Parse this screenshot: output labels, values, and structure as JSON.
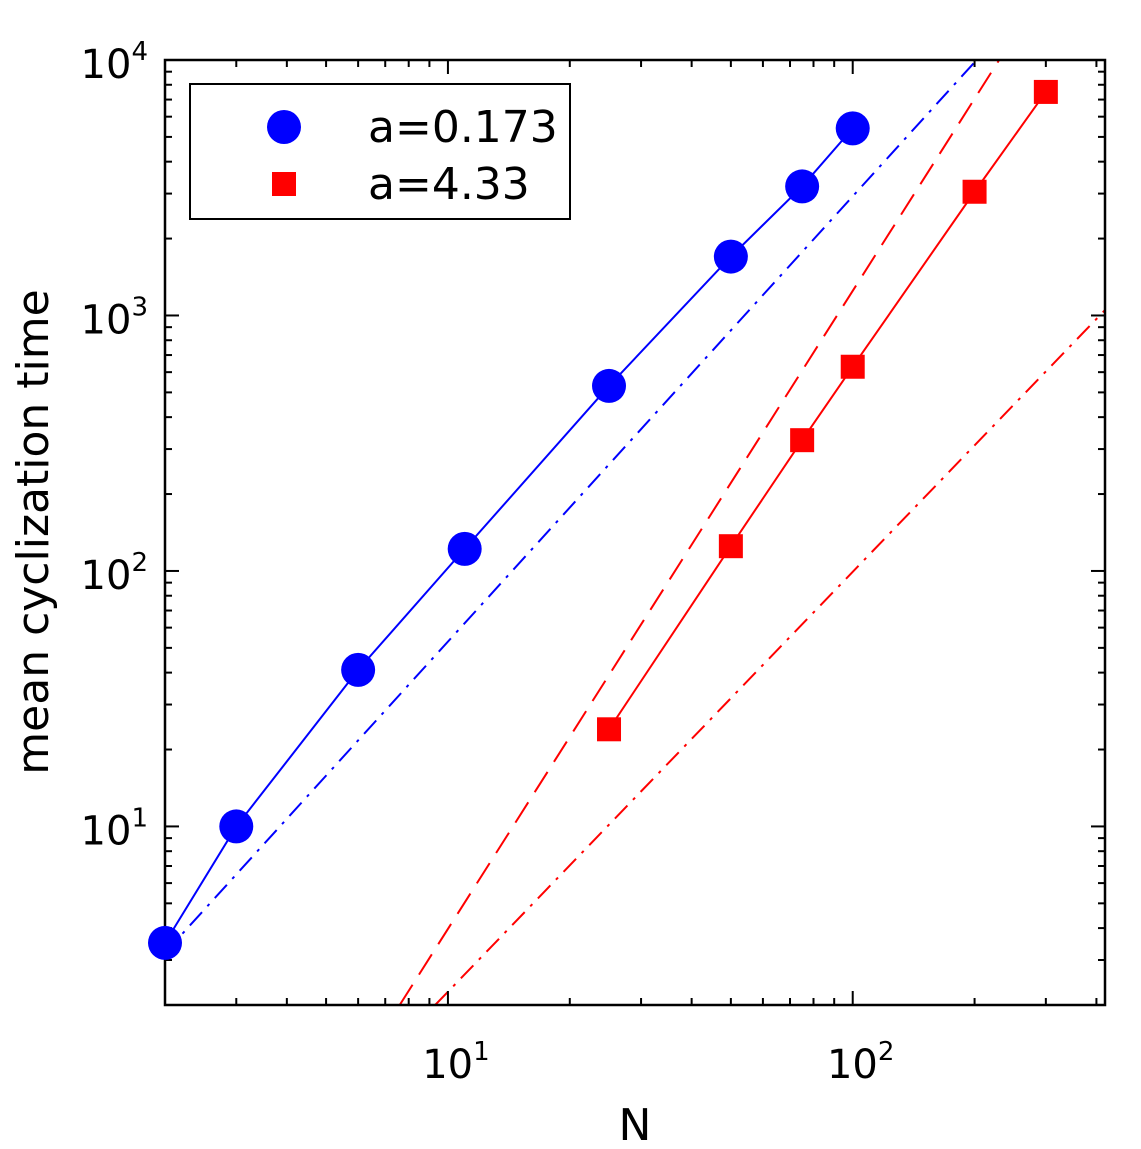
{
  "chart_data": {
    "type": "line",
    "title": "",
    "xlabel": "N",
    "ylabel": "mean cyclization time",
    "xscale": "log",
    "yscale": "log",
    "xlim": [
      2,
      420
    ],
    "ylim": [
      2,
      10000
    ],
    "grid": false,
    "legend_position": "top-left",
    "x_ticks": [
      {
        "base": "10",
        "exp": "1"
      },
      {
        "base": "10",
        "exp": "2"
      }
    ],
    "y_ticks": [
      {
        "base": "10",
        "exp": "1"
      },
      {
        "base": "10",
        "exp": "2"
      },
      {
        "base": "10",
        "exp": "3"
      },
      {
        "base": "10",
        "exp": "4"
      }
    ],
    "series": [
      {
        "name": "a=0.173",
        "color": "#0000ff",
        "marker": "circle",
        "line": "solid",
        "x": [
          2,
          3,
          6,
          11,
          25,
          50,
          75,
          100
        ],
        "y": [
          3.5,
          10,
          41,
          122,
          530,
          1700,
          3200,
          5400
        ]
      },
      {
        "name": "a=4.33",
        "color": "#ff0000",
        "marker": "square",
        "line": "solid",
        "x": [
          25,
          50,
          75,
          100,
          200,
          300
        ],
        "y": [
          24,
          125,
          325,
          630,
          3050,
          7500
        ]
      }
    ],
    "reference_lines": [
      {
        "color": "#0000ff",
        "dash": "dashdot",
        "x": [
          2,
          200
        ],
        "y": [
          3.2,
          9800
        ]
      },
      {
        "color": "#ff0000",
        "dash": "dashed",
        "x": [
          7.6,
          230
        ],
        "y": [
          2,
          10000
        ]
      },
      {
        "color": "#ff0000",
        "dash": "dashdot",
        "x": [
          9.3,
          420
        ],
        "y": [
          2,
          1050
        ]
      }
    ]
  }
}
